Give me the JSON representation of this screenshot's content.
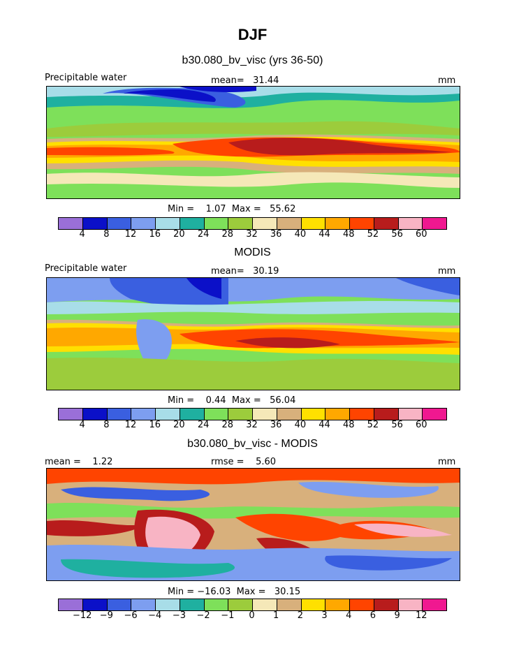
{
  "header": {
    "title": "DJF",
    "subtitle": "b30.080_bv_visc (yrs 36-50)"
  },
  "panel1": {
    "left_label": "Precipitable water",
    "center_label": "mean=   31.44",
    "right_label": "mm",
    "minmax": "Min =    1.07  Max =   55.62",
    "ticks": [
      "4",
      "8",
      "12",
      "16",
      "20",
      "24",
      "28",
      "32",
      "36",
      "40",
      "44",
      "48",
      "52",
      "56",
      "60"
    ]
  },
  "panel2": {
    "title": "MODIS",
    "left_label": "Precipitable water",
    "center_label": "mean=   30.19",
    "right_label": "mm",
    "minmax": "Min =    0.44  Max =   56.04",
    "ticks": [
      "4",
      "8",
      "12",
      "16",
      "20",
      "24",
      "28",
      "32",
      "36",
      "40",
      "44",
      "48",
      "52",
      "56",
      "60"
    ]
  },
  "panel3": {
    "title": "b30.080_bv_visc - MODIS",
    "left_label": "mean =    1.22",
    "center_label": "rmse =    5.60",
    "right_label": "mm",
    "minmax": "Min = −16.03  Max =   30.15",
    "ticks": [
      "−12",
      "−9",
      "−6",
      "−4",
      "−3",
      "−2",
      "−1",
      "0",
      "1",
      "2",
      "3",
      "4",
      "6",
      "9",
      "12"
    ]
  },
  "colorbar": {
    "colors": [
      "#9a6fd8",
      "#0b10c8",
      "#3a5fe0",
      "#7d9ef0",
      "#a8dde8",
      "#1fb0a0",
      "#7ee05a",
      "#9ccc3c",
      "#f5e8b8",
      "#d8b07c",
      "#ffe000",
      "#ffa800",
      "#ff4400",
      "#b81c1c",
      "#f8b4c4",
      "#f01890"
    ]
  }
}
